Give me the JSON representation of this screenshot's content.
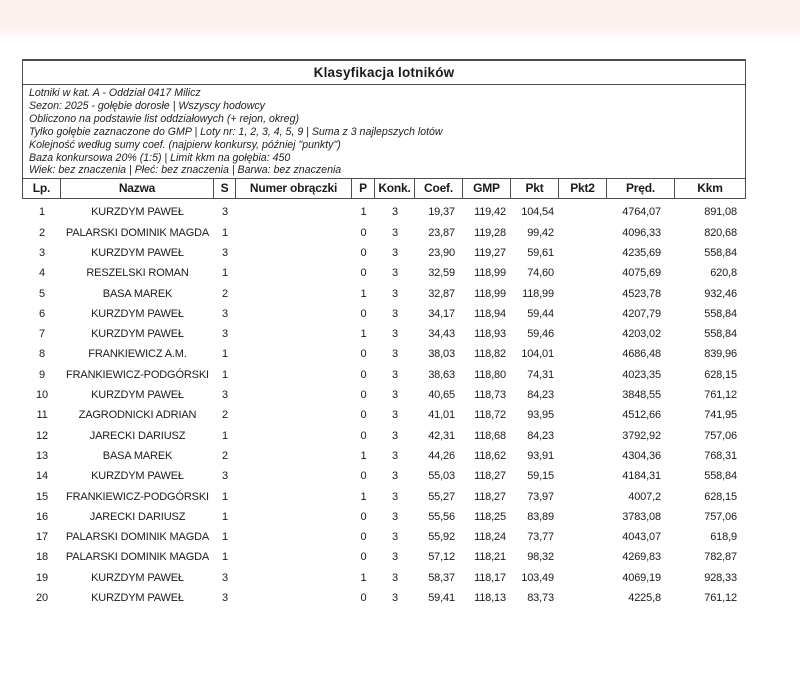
{
  "colors": {
    "page_background": "#ffffff",
    "top_band": "#fcf1ed",
    "border": "#4e4e4e",
    "text": "#1b1b1b"
  },
  "report": {
    "title": "Klasyfikacja lotników",
    "info_lines": [
      "Lotniki w kat. A - Oddział 0417 Milicz",
      "Sezon: 2025 - gołębie dorosłe  |  Wszyscy hodowcy",
      "Obliczono na podstawie list oddziałowych (+ rejon, okreg)",
      "Tylko gołębie zaznaczone do GMP  |  Loty nr: 1, 2, 3, 4, 5, 9  |  Suma z 3 najlepszych lotów",
      "Kolejność według sumy coef. (najpierw konkursy, później \"punkty\")",
      "Baza konkursowa 20% (1:5) | Limit kkm na gołębia: 450",
      "Wiek: bez znaczenia  |  Płeć: bez znaczenia  |  Barwa: bez znaczenia"
    ],
    "table": {
      "headers": [
        "Lp.",
        "Nazwa",
        "S",
        "Numer obrączki",
        "P",
        "Konk.",
        "Coef.",
        "GMP",
        "Pkt",
        "Pkt2",
        "Pręd.",
        "Kkm"
      ],
      "column_keys": [
        "lp",
        "nazwa",
        "s",
        "numer-obraczki",
        "p",
        "konk",
        "coef",
        "gmp",
        "pkt",
        "pkt2",
        "pred",
        "kkm"
      ],
      "rows": [
        [
          "1",
          "KURZDYM PAWEŁ",
          "3",
          "",
          "1",
          "3",
          "19,37",
          "119,42",
          "104,54",
          "",
          "4764,07",
          "891,08"
        ],
        [
          "2",
          "PALARSKI DOMINIK MAGDA",
          "1",
          "",
          "0",
          "3",
          "23,87",
          "119,28",
          "99,42",
          "",
          "4096,33",
          "820,68"
        ],
        [
          "3",
          "KURZDYM PAWEŁ",
          "3",
          "",
          "0",
          "3",
          "23,90",
          "119,27",
          "59,61",
          "",
          "4235,69",
          "558,84"
        ],
        [
          "4",
          "RESZELSKI ROMAN",
          "1",
          "",
          "0",
          "3",
          "32,59",
          "118,99",
          "74,60",
          "",
          "4075,69",
          "620,8"
        ],
        [
          "5",
          "BASA MAREK",
          "2",
          "",
          "1",
          "3",
          "32,87",
          "118,99",
          "118,99",
          "",
          "4523,78",
          "932,46"
        ],
        [
          "6",
          "KURZDYM PAWEŁ",
          "3",
          "",
          "0",
          "3",
          "34,17",
          "118,94",
          "59,44",
          "",
          "4207,79",
          "558,84"
        ],
        [
          "7",
          "KURZDYM PAWEŁ",
          "3",
          "",
          "1",
          "3",
          "34,43",
          "118,93",
          "59,46",
          "",
          "4203,02",
          "558,84"
        ],
        [
          "8",
          "FRANKIEWICZ A.M.",
          "1",
          "",
          "0",
          "3",
          "38,03",
          "118,82",
          "104,01",
          "",
          "4686,48",
          "839,96"
        ],
        [
          "9",
          "FRANKIEWICZ-PODGÓRSKI",
          "1",
          "",
          "0",
          "3",
          "38,63",
          "118,80",
          "74,31",
          "",
          "4023,35",
          "628,15"
        ],
        [
          "10",
          "KURZDYM PAWEŁ",
          "3",
          "",
          "0",
          "3",
          "40,65",
          "118,73",
          "84,23",
          "",
          "3848,55",
          "761,12"
        ],
        [
          "11",
          "ZAGRODNICKI ADRIAN",
          "2",
          "",
          "0",
          "3",
          "41,01",
          "118,72",
          "93,95",
          "",
          "4512,66",
          "741,95"
        ],
        [
          "12",
          "JARECKI DARIUSZ",
          "1",
          "",
          "0",
          "3",
          "42,31",
          "118,68",
          "84,23",
          "",
          "3792,92",
          "757,06"
        ],
        [
          "13",
          "BASA MAREK",
          "2",
          "",
          "1",
          "3",
          "44,26",
          "118,62",
          "93,91",
          "",
          "4304,36",
          "768,31"
        ],
        [
          "14",
          "KURZDYM PAWEŁ",
          "3",
          "",
          "0",
          "3",
          "55,03",
          "118,27",
          "59,15",
          "",
          "4184,31",
          "558,84"
        ],
        [
          "15",
          "FRANKIEWICZ-PODGÓRSKI",
          "1",
          "",
          "1",
          "3",
          "55,27",
          "118,27",
          "73,97",
          "",
          "4007,2",
          "628,15"
        ],
        [
          "16",
          "JARECKI DARIUSZ",
          "1",
          "",
          "0",
          "3",
          "55,56",
          "118,25",
          "83,89",
          "",
          "3783,08",
          "757,06"
        ],
        [
          "17",
          "PALARSKI DOMINIK MAGDA",
          "1",
          "",
          "0",
          "3",
          "55,92",
          "118,24",
          "73,77",
          "",
          "4043,07",
          "618,9"
        ],
        [
          "18",
          "PALARSKI DOMINIK MAGDA",
          "1",
          "",
          "0",
          "3",
          "57,12",
          "118,21",
          "98,32",
          "",
          "4269,83",
          "782,87"
        ],
        [
          "19",
          "KURZDYM PAWEŁ",
          "3",
          "",
          "1",
          "3",
          "58,37",
          "118,17",
          "103,49",
          "",
          "4069,19",
          "928,33"
        ],
        [
          "20",
          "KURZDYM PAWEŁ",
          "3",
          "",
          "0",
          "3",
          "59,41",
          "118,13",
          "83,73",
          "",
          "4225,8",
          "761,12"
        ]
      ]
    }
  }
}
